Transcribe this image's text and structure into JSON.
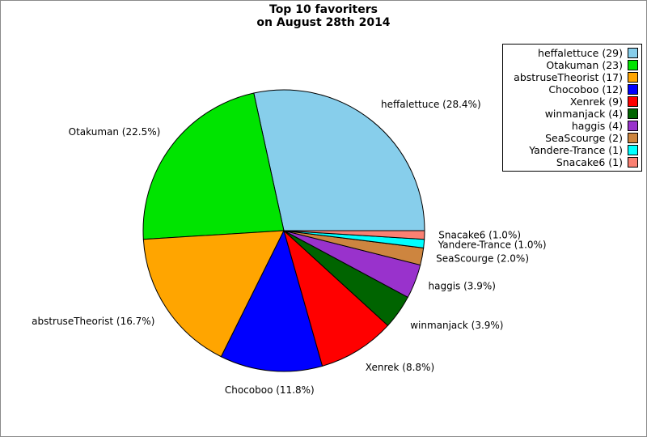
{
  "page": {
    "background": "#ffffff",
    "outer_border_color": "#8a8a8a"
  },
  "title": {
    "line1": "Top 10 favoriters",
    "line2": "on August 28th 2014"
  },
  "chart_data": {
    "type": "pie",
    "title": "Top 10 favoriters on August 28th 2014",
    "total": 102,
    "start_angle_deg": 0,
    "direction": "counterclockwise",
    "legend_position": "upper right",
    "wedge_outline_color": "#000000",
    "slices": [
      {
        "name": "heffalettuce",
        "count": 29,
        "percent_label": "28.4%",
        "color": "#87CEEB"
      },
      {
        "name": "Otakuman",
        "count": 23,
        "percent_label": "22.5%",
        "color": "#00E400"
      },
      {
        "name": "abstruseTheorist",
        "count": 17,
        "percent_label": "16.7%",
        "color": "#FFA500"
      },
      {
        "name": "Chocoboo",
        "count": 12,
        "percent_label": "11.8%",
        "color": "#0000FF"
      },
      {
        "name": "Xenrek",
        "count": 9,
        "percent_label": "8.8%",
        "color": "#FF0000"
      },
      {
        "name": "winmanjack",
        "count": 4,
        "percent_label": "3.9%",
        "color": "#006400"
      },
      {
        "name": "haggis",
        "count": 4,
        "percent_label": "3.9%",
        "color": "#9932CC"
      },
      {
        "name": "SeaScourge",
        "count": 2,
        "percent_label": "2.0%",
        "color": "#CD853F"
      },
      {
        "name": "Yandere-Trance",
        "count": 1,
        "percent_label": "1.0%",
        "color": "#00FFFF"
      },
      {
        "name": "Snacake6",
        "count": 1,
        "percent_label": "1.0%",
        "color": "#FA8072"
      }
    ]
  }
}
